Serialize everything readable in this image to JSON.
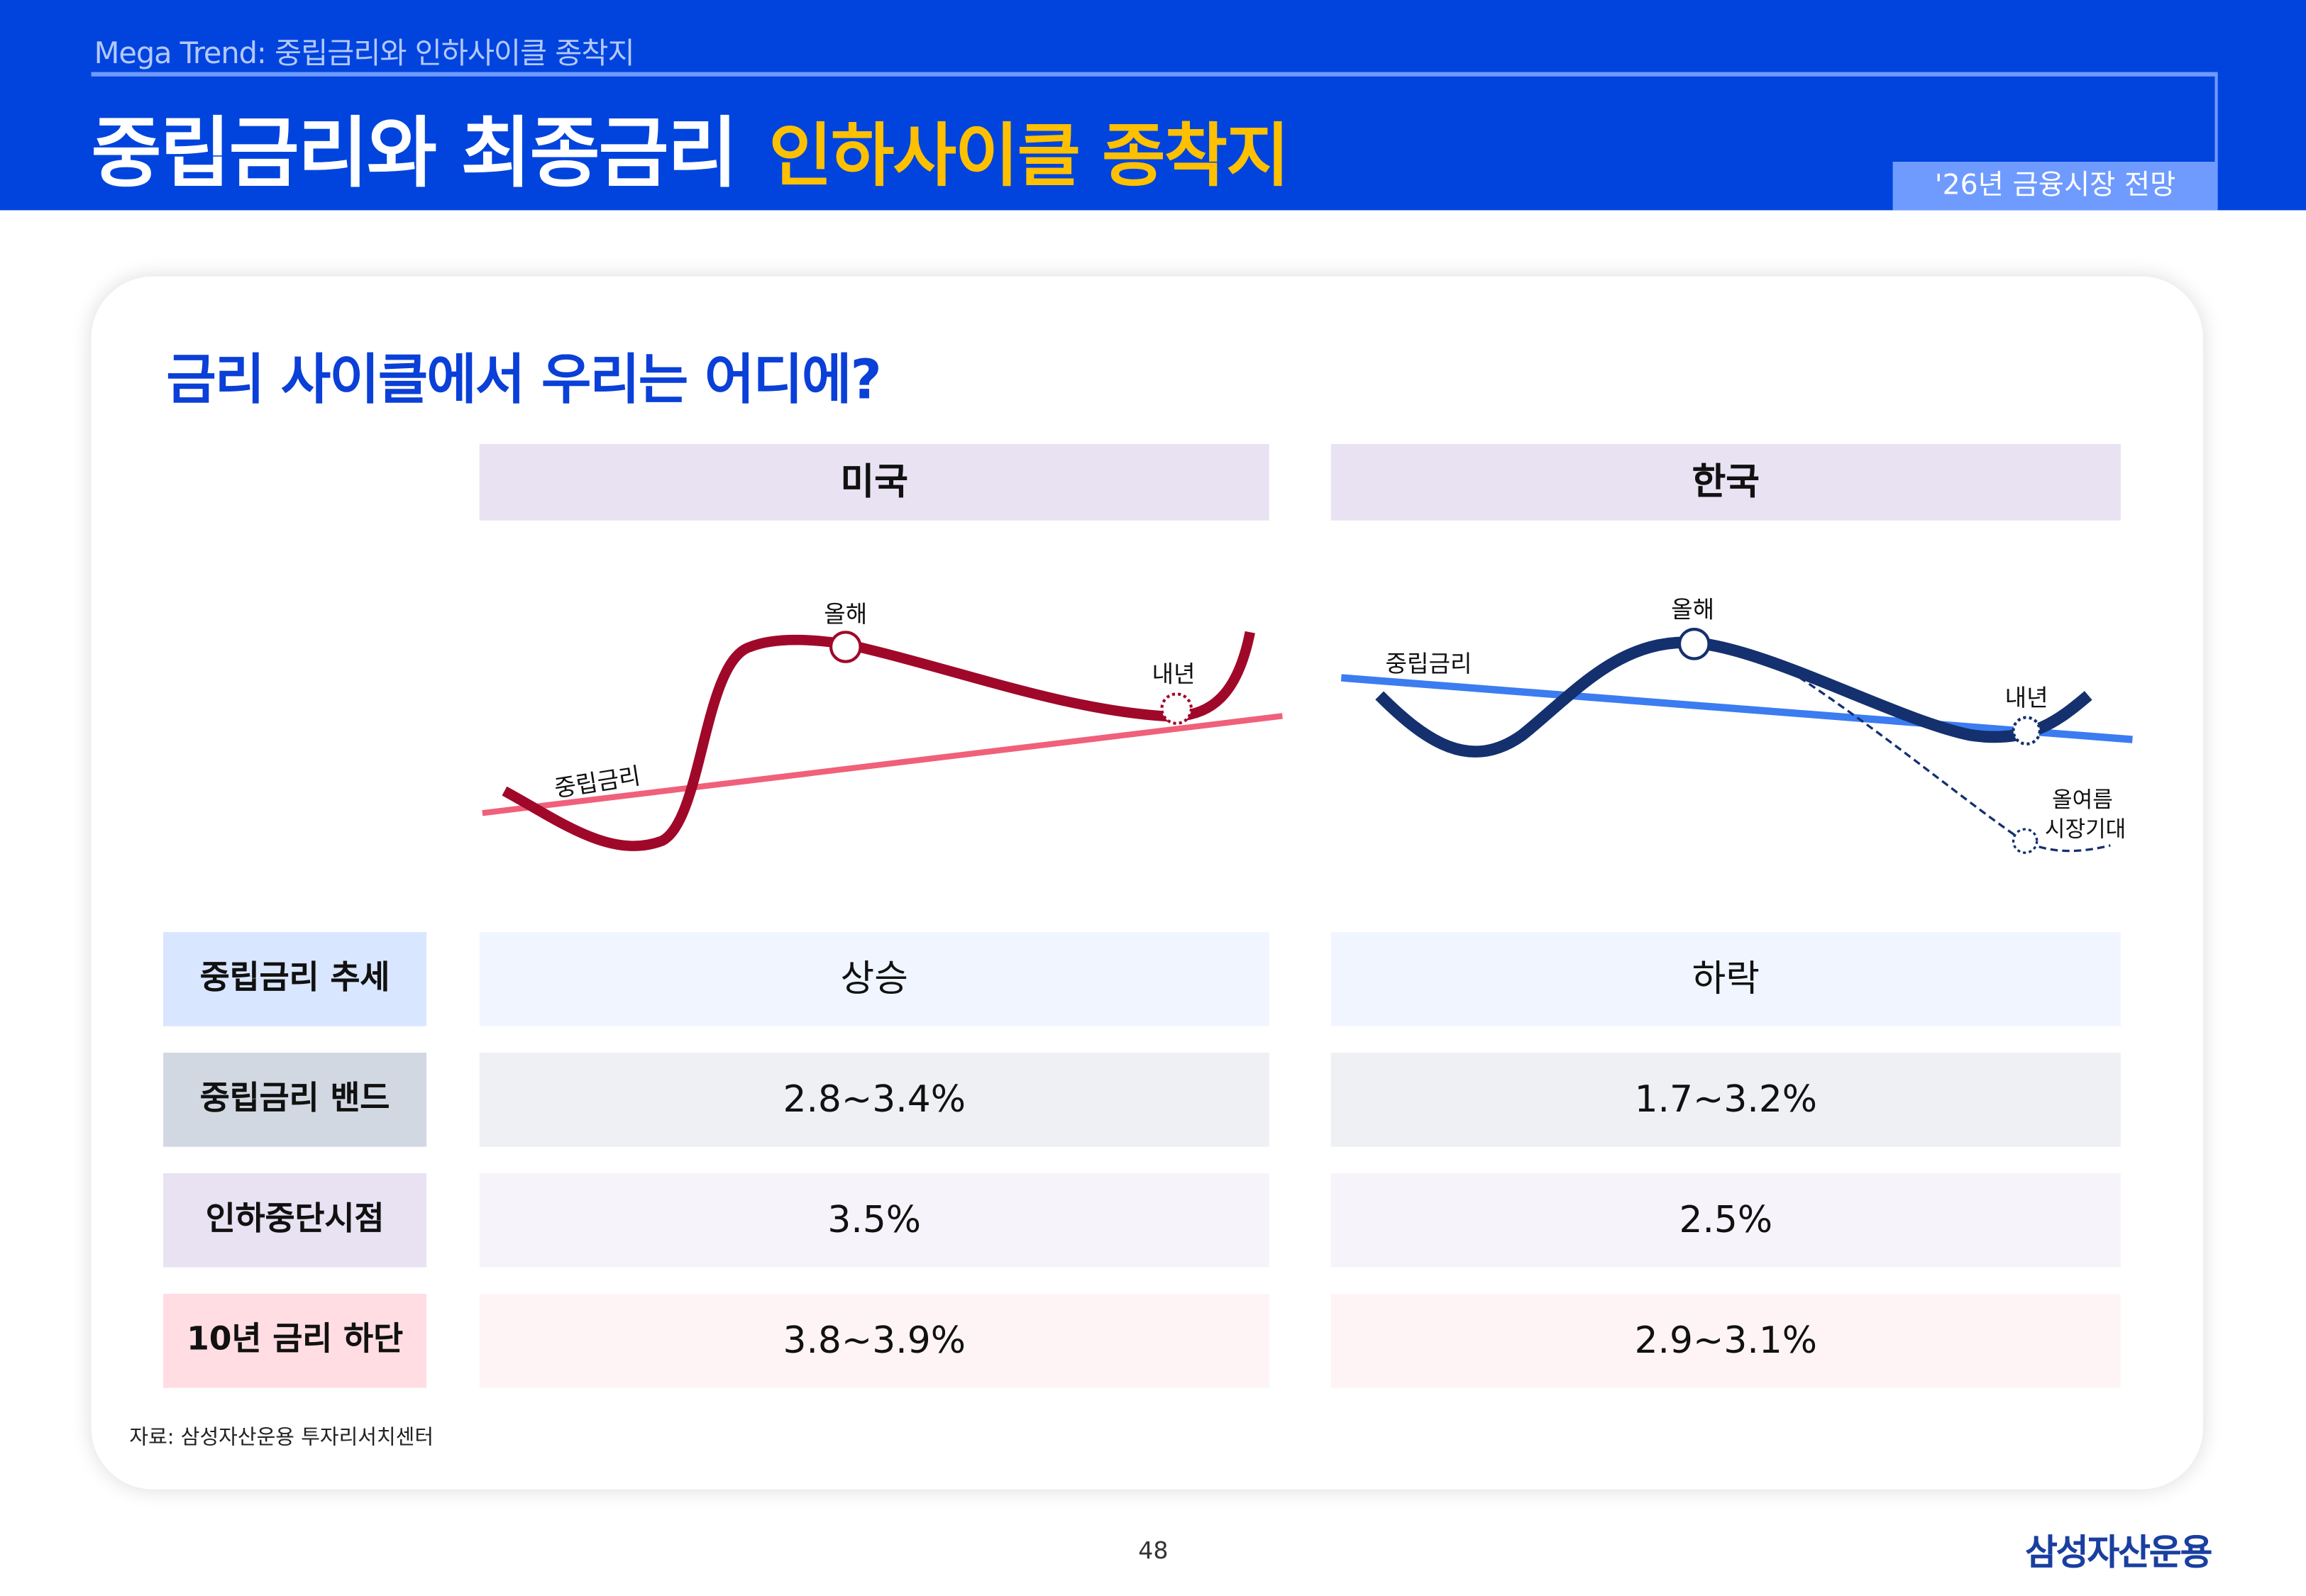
{
  "header": {
    "kicker": "Mega Trend: 중립금리와 인하사이클 종착지",
    "title_main": "중립금리와 최종금리",
    "title_highlight": "인하사이클 종착지",
    "badge": "'26년 금융시장 전망"
  },
  "card": {
    "question": "금리 사이클에서 우리는 어디에?",
    "columns": [
      "미국",
      "한국"
    ],
    "charts": {
      "us": {
        "neutral_label": "중립금리",
        "this_year": "올해",
        "next_year": "내년",
        "line_color": "#a0082a",
        "neutral_color": "#f0607a"
      },
      "kr": {
        "neutral_label": "중립금리",
        "this_year": "올해",
        "next_year": "내년",
        "market_line1": "올여름",
        "market_line2": "시장기대",
        "line_color": "#14306e",
        "neutral_color": "#3b7cf0"
      }
    },
    "rows": [
      {
        "label": "중립금리 추세",
        "us": "상승",
        "kr": "하락"
      },
      {
        "label": "중립금리 밴드",
        "us": "2.8~3.4%",
        "kr": "1.7~3.2%"
      },
      {
        "label": "인하중단시점",
        "us": "3.5%",
        "kr": "2.5%"
      },
      {
        "label": "10년 금리 하단",
        "us": "3.8~3.9%",
        "kr": "2.9~3.1%"
      }
    ],
    "source": "자료: 삼성자산운용 투자리서치센터"
  },
  "footer": {
    "page": "48",
    "logo": "삼성자산운용"
  },
  "colors": {
    "header_bg": "#0044dd",
    "highlight": "#ffc000",
    "accent": "#0a3fd8"
  }
}
